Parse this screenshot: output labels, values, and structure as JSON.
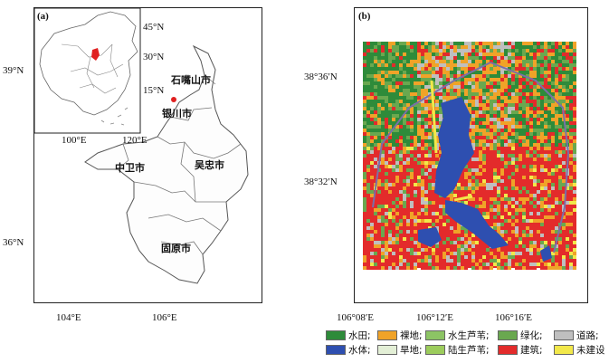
{
  "panel_a": {
    "label": "(a)",
    "y_ticks": [
      "39°N",
      "36°N"
    ],
    "x_ticks": [
      "104°E",
      "106°E"
    ],
    "inset": {
      "lat_ticks": [
        "45°N",
        "30°N",
        "15°N"
      ],
      "lon_ticks": [
        "100°E",
        "120°E"
      ]
    },
    "cities": {
      "shizuishan": "石嘴山市",
      "yinchuan": "银川市",
      "zhongwei": "中卫市",
      "wuzhong": "吴忠市",
      "guyuan": "固原市"
    }
  },
  "panel_b": {
    "label": "(b)",
    "y_ticks": [
      "38°36′N",
      "38°32′N"
    ],
    "x_ticks": [
      "106°08′E",
      "106°12′E",
      "106°16′E"
    ]
  },
  "legend": {
    "items": [
      {
        "label": "水田;",
        "color": "#2e8b3a"
      },
      {
        "label": "裸地;",
        "color": "#f0a328"
      },
      {
        "label": "水生芦苇;",
        "color": "#8cc464"
      },
      {
        "label": "绿化;",
        "color": "#6aa84f"
      },
      {
        "label": "道路;",
        "color": "#bfbfbf"
      },
      {
        "label": "水体;",
        "color": "#2e4fb0"
      },
      {
        "label": "旱地;",
        "color": "#e3efd6"
      },
      {
        "label": "陆生芦苇;",
        "color": "#9ccc5c"
      },
      {
        "label": "建筑;",
        "color": "#e32b2b"
      },
      {
        "label": "未建设",
        "color": "#f2e84a"
      }
    ]
  }
}
